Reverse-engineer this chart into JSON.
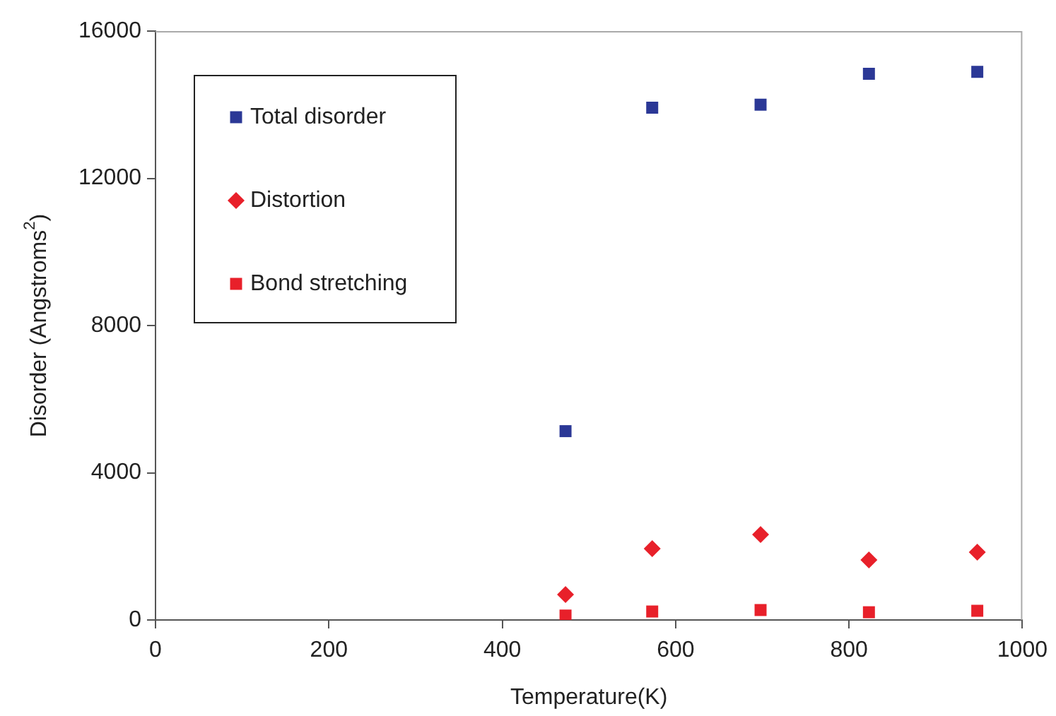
{
  "chart_data": {
    "type": "scatter",
    "xlabel": "Temperature(K)",
    "ylabel": "Disorder (Angstroms$^{2}$)",
    "x": [
      473,
      573,
      698,
      823,
      948
    ],
    "series": [
      {
        "name": "Total disorder",
        "color": "#2b3896",
        "marker": "square",
        "values": [
          5130,
          13920,
          14000,
          14840,
          14890
        ]
      },
      {
        "name": "Distortion",
        "color": "#e8202a",
        "marker": "diamond",
        "values": [
          690,
          1940,
          2320,
          1630,
          1840
        ]
      },
      {
        "name": "Bond stretching",
        "color": "#e8202a",
        "marker": "square",
        "values": [
          120,
          230,
          270,
          210,
          250
        ]
      }
    ],
    "xlim": [
      0,
      1000
    ],
    "xticks": [
      0,
      200,
      400,
      600,
      800,
      1000
    ],
    "ylim": [
      0,
      16000
    ],
    "yticks": [
      0,
      4000,
      8000,
      12000,
      16000
    ],
    "grid": false,
    "legend": "top left"
  }
}
